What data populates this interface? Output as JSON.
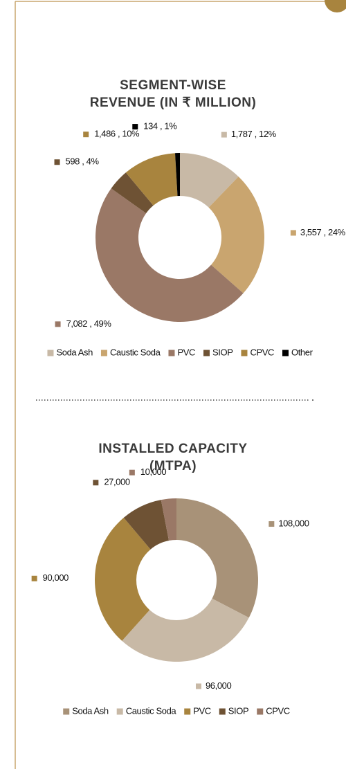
{
  "chart_data": [
    {
      "type": "donut",
      "title": "SEGMENT-WISE\nREVENUE (IN ₹ MILLION)",
      "categories": [
        "Soda Ash",
        "Caustic Soda",
        "PVC",
        "SIOP",
        "CPVC",
        "Other"
      ],
      "values": [
        1787,
        3557,
        7082,
        598,
        1486,
        134
      ],
      "value_labels": [
        "1,787 , 12%",
        "3,557 , 24%",
        "7,082 , 49%",
        "598 , 4%",
        "1,486 , 10%",
        "134 , 1%"
      ],
      "colors": [
        "#c8b9a6",
        "#c9a56f",
        "#9a7866",
        "#6e5234",
        "#a8843e",
        "#000000"
      ]
    },
    {
      "type": "donut",
      "title": "INSTALLED CAPACITY\n(MTPA)",
      "categories": [
        "Soda Ash",
        "Caustic Soda",
        "PVC",
        "SIOP",
        "CPVC"
      ],
      "values": [
        108000,
        96000,
        90000,
        27000,
        10000
      ],
      "value_labels": [
        "108,000",
        "96,000",
        "90,000",
        "27,000",
        "10,000"
      ],
      "colors": [
        "#a89278",
        "#c8b9a6",
        "#a8843e",
        "#6e5234",
        "#9a7866"
      ]
    }
  ]
}
